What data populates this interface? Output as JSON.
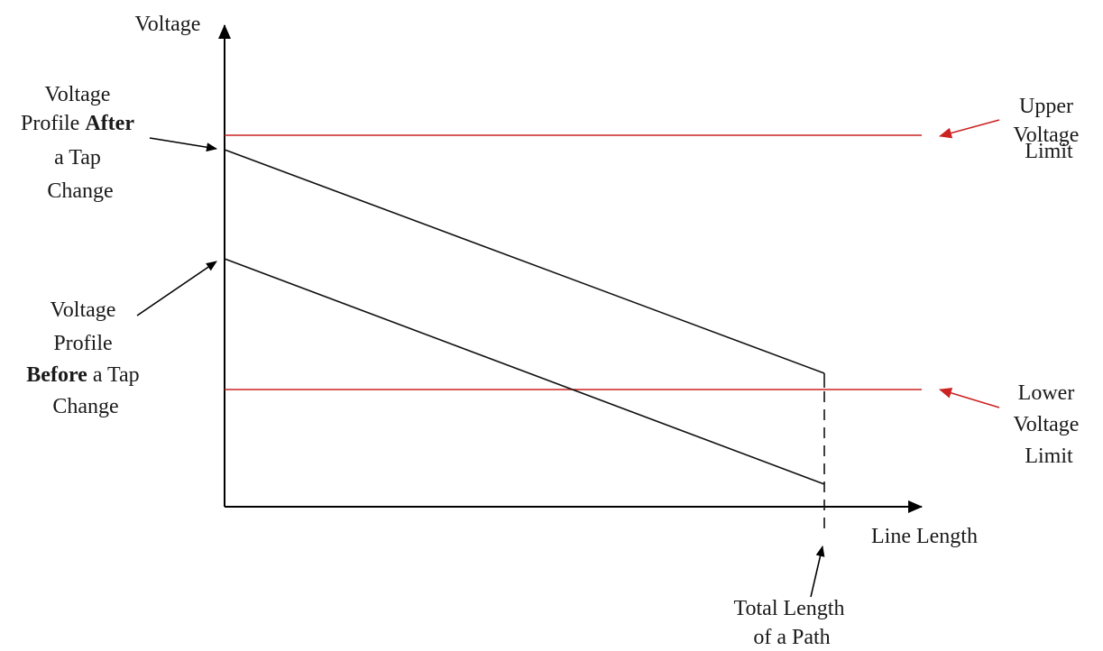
{
  "diagram": {
    "y_axis_label": "Voltage",
    "x_axis_label": "Line Length",
    "after_label": {
      "line1": "Voltage",
      "line2_prefix": "Profile ",
      "line2_bold": "After",
      "line3": "a Tap",
      "line4": "Change"
    },
    "before_label": {
      "line1": "Voltage",
      "line2": "Profile",
      "line3_bold": "Before",
      "line3_suffix": " a Tap",
      "line4": "Change"
    },
    "upper_limit_label": [
      "Upper",
      "Voltage",
      "Limit"
    ],
    "lower_limit_label": [
      "Lower",
      "Voltage",
      "Limit"
    ],
    "path_label": [
      "Total Length",
      "of a Path"
    ],
    "colors": {
      "limit_lines": "#cc2222",
      "profile_lines": "#111111",
      "axes": "#000000"
    }
  }
}
